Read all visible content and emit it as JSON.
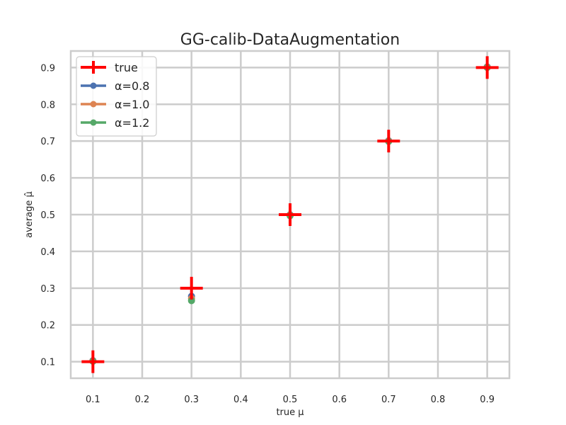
{
  "chart_data": {
    "type": "scatter",
    "title": "GG-calib-DataAugmentation",
    "xlabel": "true μ",
    "ylabel": "average μ̂",
    "xlim": [
      0.055,
      0.945
    ],
    "ylim": [
      0.055,
      0.945
    ],
    "xticks": [
      0.1,
      0.2,
      0.3,
      0.4,
      0.5,
      0.6,
      0.7,
      0.8,
      0.9
    ],
    "yticks": [
      0.1,
      0.2,
      0.3,
      0.4,
      0.5,
      0.6,
      0.7,
      0.8,
      0.9
    ],
    "x_tick_labels": [
      "0.1",
      "0.2",
      "0.3",
      "0.4",
      "0.5",
      "0.6",
      "0.7",
      "0.8",
      "0.9"
    ],
    "y_tick_labels": [
      "0.1",
      "0.2",
      "0.3",
      "0.4",
      "0.5",
      "0.6",
      "0.7",
      "0.8",
      "0.9"
    ],
    "grid": true,
    "legend_position": "top-left",
    "series": [
      {
        "name": "true",
        "marker": "plus",
        "color": "#ff0000",
        "points": [
          [
            0.1,
            0.1
          ],
          [
            0.3,
            0.3
          ],
          [
            0.5,
            0.5
          ],
          [
            0.7,
            0.7
          ],
          [
            0.9,
            0.9
          ]
        ]
      },
      {
        "name": "α=0.8",
        "marker": "dot",
        "color": "#4c72b0",
        "points": [
          [
            0.1,
            0.103
          ],
          [
            0.3,
            0.278
          ],
          [
            0.5,
            0.5
          ],
          [
            0.7,
            0.701
          ],
          [
            0.9,
            0.902
          ]
        ]
      },
      {
        "name": "α=1.0",
        "marker": "dot",
        "color": "#dd8452",
        "points": [
          [
            0.1,
            0.102
          ],
          [
            0.3,
            0.272
          ],
          [
            0.5,
            0.499
          ],
          [
            0.7,
            0.7
          ],
          [
            0.9,
            0.901
          ]
        ]
      },
      {
        "name": "α=1.2",
        "marker": "dot",
        "color": "#55a868",
        "points": [
          [
            0.1,
            0.101
          ],
          [
            0.3,
            0.266
          ],
          [
            0.5,
            0.497
          ],
          [
            0.7,
            0.699
          ],
          [
            0.9,
            0.9
          ]
        ]
      }
    ]
  }
}
